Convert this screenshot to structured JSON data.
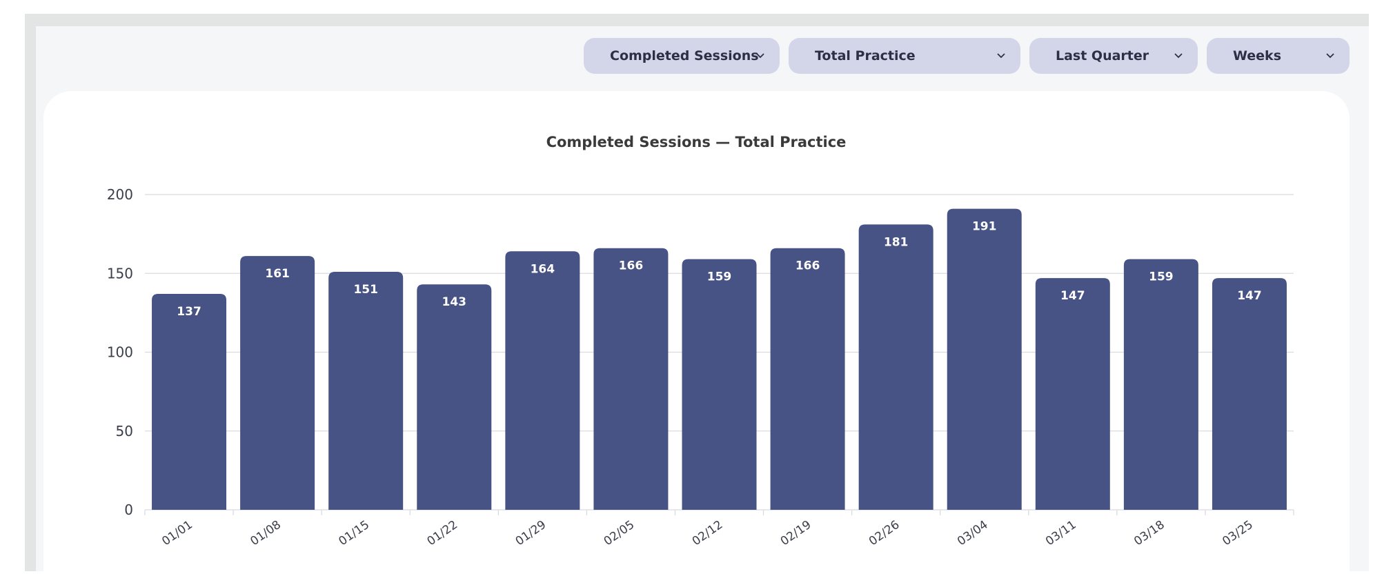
{
  "controls": {
    "metric": "Completed Sessions",
    "category": "Total Practice",
    "range": "Last Quarter",
    "granularity": "Weeks"
  },
  "colors": {
    "bar": "#475285",
    "bar_label": "#ffffff",
    "grid": "#d9dbe0",
    "axis_text": "#3a3d4a",
    "dropdown_bg": "#d3d6e9"
  },
  "chart_data": {
    "type": "bar",
    "title": "Completed Sessions — Total Practice",
    "xlabel": "",
    "ylabel": "",
    "ylim": [
      0,
      200
    ],
    "yticks": [
      0,
      50,
      100,
      150,
      200
    ],
    "grid": true,
    "categories": [
      "01/01",
      "01/08",
      "01/15",
      "01/22",
      "01/29",
      "02/05",
      "02/12",
      "02/19",
      "02/26",
      "03/04",
      "03/11",
      "03/18",
      "03/25"
    ],
    "values": [
      137,
      161,
      151,
      143,
      164,
      166,
      159,
      166,
      181,
      191,
      147,
      159,
      147
    ]
  }
}
